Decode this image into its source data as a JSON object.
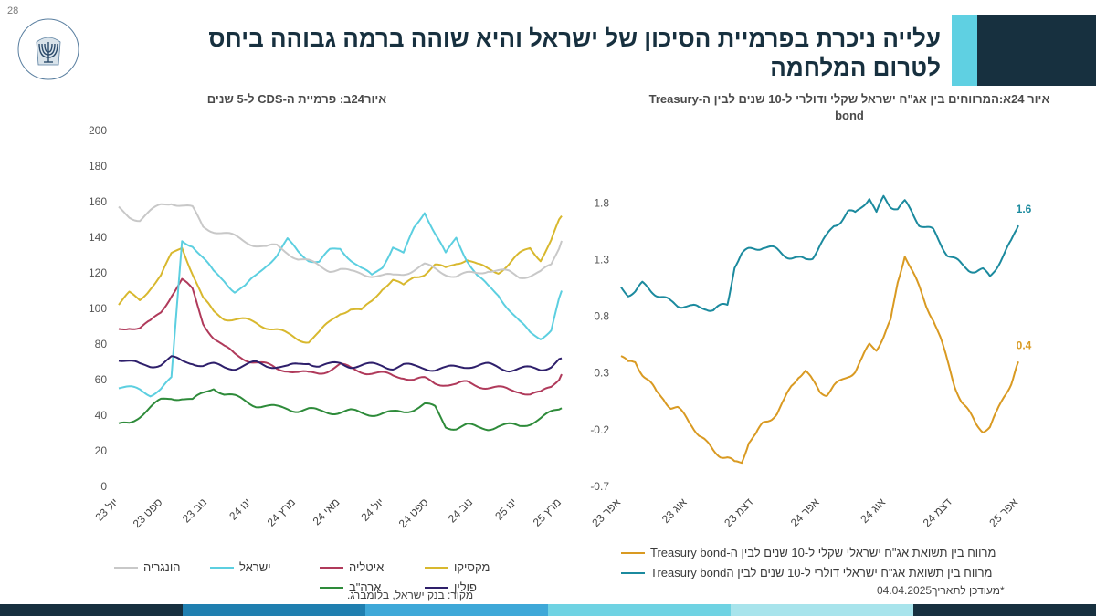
{
  "page_number": "28",
  "header": {
    "title": "עלייה ניכרת בפרמיית הסיכון של ישראל והיא שוהה ברמה גבוהה ביחס לטרום המלחמה",
    "logo_text": "בנק ישראל BANK OF ISRAEL بنك إسرائيل",
    "colors": {
      "dark": "#17303f",
      "light": "#5fd0e2"
    }
  },
  "chart_data": [
    {
      "type": "line",
      "title": "איור24ב: פרמיית ה-CDS ל-5 שנים",
      "ylim": [
        0,
        200
      ],
      "yticks": [
        "200",
        "180",
        "160",
        "140",
        "120",
        "100",
        "80",
        "60",
        "40",
        "20",
        "0"
      ],
      "xticks": [
        "יול 23",
        "ספט 23",
        "נוב 23",
        "ינו 24",
        "מרץ 24",
        "מאי 24",
        "יול 24",
        "ספט 24",
        "נוב 24",
        "ינו 25",
        "מרץ 25"
      ],
      "series": [
        {
          "name": "מקסיקו",
          "color": "#d8b82e",
          "values": [
            102,
            108,
            105,
            112,
            118,
            130,
            135,
            120,
            105,
            98,
            95,
            94,
            93,
            92,
            90,
            88,
            85,
            83,
            82,
            86,
            92,
            98,
            100,
            98,
            104,
            112,
            116,
            112,
            118,
            120,
            124,
            122,
            126,
            128,
            124,
            122,
            121,
            125,
            130,
            134,
            128,
            138,
            152
          ]
        },
        {
          "name": "איטליה",
          "color": "#b03a5b",
          "values": [
            88,
            90,
            89,
            92,
            98,
            108,
            116,
            110,
            92,
            84,
            78,
            74,
            72,
            70,
            68,
            66,
            66,
            64,
            63,
            64,
            66,
            68,
            66,
            65,
            64,
            63,
            62,
            62,
            60,
            60,
            58,
            58,
            57,
            58,
            57,
            56,
            55,
            54,
            54,
            52,
            52,
            56,
            63
          ]
        },
        {
          "name": "ישראל",
          "color": "#5ccfe0",
          "values": [
            56,
            55,
            54,
            52,
            55,
            60,
            138,
            136,
            128,
            120,
            116,
            110,
            112,
            118,
            125,
            130,
            138,
            132,
            128,
            126,
            132,
            134,
            128,
            122,
            118,
            124,
            135,
            130,
            145,
            155,
            142,
            130,
            140,
            128,
            118,
            112,
            108,
            100,
            92,
            86,
            84,
            88,
            110
          ]
        },
        {
          "name": "הונגריה",
          "color": "#c8c8c8",
          "values": [
            156,
            152,
            150,
            154,
            158,
            160,
            158,
            156,
            146,
            144,
            142,
            140,
            138,
            136,
            134,
            135,
            132,
            128,
            126,
            124,
            122,
            122,
            120,
            120,
            119,
            118,
            118,
            120,
            122,
            124,
            122,
            120,
            118,
            119,
            120,
            122,
            121,
            120,
            118,
            119,
            120,
            124,
            138
          ]
        },
        {
          "name": "פולין",
          "color": "#2e1f6b",
          "values": [
            72,
            70,
            68,
            68,
            69,
            72,
            70,
            70,
            68,
            68,
            67,
            67,
            68,
            69,
            68,
            68,
            67,
            68,
            70,
            68,
            68,
            69,
            68,
            68,
            68,
            68,
            67,
            68,
            67,
            67,
            66,
            66,
            67,
            68,
            68,
            68,
            67,
            66,
            66,
            66,
            66,
            68,
            72
          ]
        },
        {
          "name": "ארה\"ב",
          "color": "#2e8b3a",
          "values": [
            34,
            36,
            40,
            44,
            48,
            50,
            50,
            48,
            52,
            56,
            52,
            50,
            48,
            46,
            45,
            44,
            44,
            43,
            43,
            42,
            42,
            42,
            42,
            41,
            41,
            41,
            41,
            42,
            44,
            46,
            44,
            34,
            33,
            34,
            33,
            33,
            34,
            34,
            34,
            36,
            38,
            41,
            44
          ]
        }
      ]
    },
    {
      "type": "line",
      "title": "איור 24א:המרווחים בין אג\"ח ישראל שקלי ודולרי ל-10 שנים לבין ה-Treasury bond",
      "ylim": [
        -0.7,
        2.1
      ],
      "yticks": [
        "1.8",
        "1.3",
        "0.8",
        "0.3",
        "-0.2",
        "-0.7"
      ],
      "xticks": [
        "אפר 23",
        "אוג 23",
        "דצמ 23",
        "אפר 24",
        "אוג 24",
        "דצמ 24",
        "אפר 25"
      ],
      "end_labels": [
        "1.6",
        "0.4"
      ],
      "series": [
        {
          "name": "מרווח בין תשואת אג\"ח ישראלי שקלי ל-10 שנים לבין ה-Treasury bond",
          "color": "#d99a22",
          "values": [
            0.45,
            0.38,
            0.4,
            0.3,
            0.22,
            0.12,
            0.08,
            0.0,
            -0.02,
            -0.08,
            -0.15,
            -0.25,
            -0.32,
            -0.38,
            -0.42,
            -0.45,
            -0.5,
            -0.48,
            -0.3,
            -0.25,
            -0.15,
            -0.1,
            -0.05,
            0.05,
            0.18,
            0.28,
            0.32,
            0.22,
            0.14,
            0.12,
            0.18,
            0.22,
            0.28,
            0.32,
            0.42,
            0.55,
            0.52,
            0.62,
            0.75,
            1.1,
            1.35,
            1.2,
            1.05,
            0.9,
            0.78,
            0.6,
            0.4,
            0.2,
            0.05,
            -0.05,
            -0.15,
            -0.2,
            -0.18,
            -0.05,
            0.1,
            0.22,
            0.4
          ]
        },
        {
          "name": "מרווח בין תשואת אג\"ח ישראלי דולרי ל-10 שנים לבין הTreasury bond",
          "color": "#1b8a9e",
          "values": [
            1.05,
            1.0,
            1.02,
            1.08,
            1.04,
            1.0,
            0.96,
            0.92,
            0.9,
            0.9,
            0.88,
            0.87,
            0.88,
            0.86,
            0.88,
            0.9,
            1.25,
            1.35,
            1.38,
            1.4,
            1.42,
            1.4,
            1.38,
            1.35,
            1.32,
            1.3,
            1.3,
            1.33,
            1.42,
            1.5,
            1.6,
            1.65,
            1.72,
            1.7,
            1.78,
            1.85,
            1.7,
            1.85,
            1.78,
            1.75,
            1.8,
            1.72,
            1.62,
            1.58,
            1.55,
            1.45,
            1.35,
            1.3,
            1.25,
            1.22,
            1.2,
            1.2,
            1.15,
            1.25,
            1.35,
            1.45,
            1.6
          ]
        }
      ]
    }
  ],
  "source": "מקור: בנק ישראל, בלומברג.",
  "updated": "*מעודכן לתאריך04.04.2025",
  "footer_colors": [
    "#17303f",
    "#1f7fb0",
    "#3ea8d8",
    "#6fd3e3",
    "#a8e4ec",
    "#17303f"
  ]
}
